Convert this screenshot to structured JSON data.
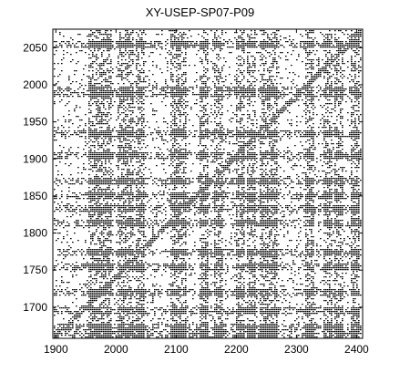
{
  "chart_data": {
    "type": "heatmap",
    "title": "XY-USEP-SP07-P09",
    "xlabel": "",
    "ylabel": "",
    "xlim": [
      1895,
      2410
    ],
    "ylim": [
      1658,
      2075
    ],
    "x_ticks": [
      1900,
      2000,
      2100,
      2200,
      2300,
      2400
    ],
    "y_ticks": [
      1700,
      1750,
      1800,
      1850,
      1900,
      1950,
      2000,
      2050
    ],
    "grid": false,
    "legend": "none",
    "colormap": [
      "#ffffff",
      "#000000"
    ],
    "description_values": "binary recurrence plot (black dots mark recurrent points)",
    "dense_columns_x": [
      1960,
      1975,
      1985,
      2010,
      2020,
      2040,
      2095,
      2110,
      2145,
      2170,
      2205,
      2225,
      2245,
      2260,
      2320,
      2350,
      2370,
      2395
    ],
    "dense_rows_y": [
      2055,
      1995,
      1990,
      1935,
      1905,
      1870,
      1850,
      1835,
      1815,
      1775,
      1755,
      1720,
      1695,
      1675,
      1665
    ]
  },
  "colors": {
    "foreground": "#000000",
    "background": "#ffffff"
  }
}
